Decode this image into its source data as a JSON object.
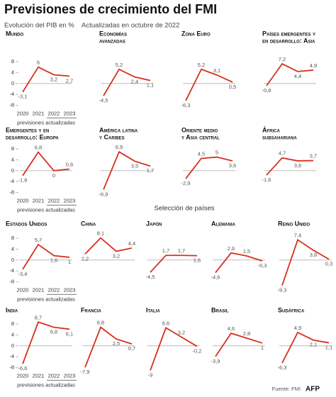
{
  "title": "Previsiones de crecimiento del FMI",
  "subtitle": "Evolución del PIB en %",
  "update_note": "Actualizadas en octubre de 2022",
  "section_label": "Selección de países",
  "source": "Fuente: FMI",
  "logo": "AFP",
  "chart_data": [
    {
      "type": "line",
      "title": [
        "Mundo"
      ],
      "categories": [
        "2020",
        "2021",
        "2022",
        "2023"
      ],
      "forecast_note": "previsiones actualizadas",
      "values": [
        -3.1,
        6,
        3.2,
        2.7
      ],
      "value_labels": [
        "-3,1",
        "6",
        "3,2",
        "2,7"
      ],
      "color": "#d7301f",
      "ylim": [
        -10,
        9
      ],
      "yticks": [
        -8,
        -4,
        0,
        4,
        8
      ]
    },
    {
      "type": "line",
      "title": [
        "Economías",
        "avanzadas"
      ],
      "values": [
        -4.5,
        5.2,
        2.4,
        1.1
      ],
      "value_labels": [
        "-4,5",
        "5,2",
        "2,4",
        "1,1"
      ],
      "color": "#d7301f",
      "ylim": [
        -10,
        9
      ]
    },
    {
      "type": "line",
      "title": [
        "Zona Euro"
      ],
      "values": [
        -6.3,
        5.2,
        3.1,
        0.5
      ],
      "value_labels": [
        "-6,3",
        "5,2",
        "3,1",
        "0,5"
      ],
      "color": "#d7301f",
      "ylim": [
        -10,
        9
      ]
    },
    {
      "type": "line",
      "title": [
        "Países emergentes y",
        "en desarrollo: Asia"
      ],
      "values": [
        -0.8,
        7.2,
        4.4,
        4.9
      ],
      "value_labels": [
        "-0,8",
        "7,2",
        "4,4",
        "4,9"
      ],
      "color": "#d7301f",
      "ylim": [
        -10,
        9
      ]
    },
    {
      "type": "line",
      "title": [
        "Emergentes y en",
        "desarrollo: Europa"
      ],
      "categories": [
        "2020",
        "2021",
        "2022",
        "2023"
      ],
      "forecast_note": "previsiones actualizadas",
      "values": [
        -1.8,
        6.8,
        0,
        0.6
      ],
      "value_labels": [
        "-1,8",
        "6,8",
        "0",
        "0,6"
      ],
      "color": "#d7301f",
      "ylim": [
        -10,
        9
      ],
      "yticks": [
        -8,
        -4,
        0,
        4,
        8
      ]
    },
    {
      "type": "line",
      "title": [
        "América latina",
        "y Caribes"
      ],
      "values": [
        -6.9,
        6.9,
        3.5,
        1.7
      ],
      "value_labels": [
        "-6,9",
        "6,9",
        "3,5",
        "1,7"
      ],
      "color": "#d7301f",
      "ylim": [
        -10,
        9
      ]
    },
    {
      "type": "line",
      "title": [
        "Oriente medio",
        "y Asia central"
      ],
      "values": [
        -2.9,
        4.5,
        5,
        3.6
      ],
      "value_labels": [
        "-2,9",
        "4,5",
        "5",
        "3,6"
      ],
      "color": "#d7301f",
      "ylim": [
        -10,
        9
      ]
    },
    {
      "type": "line",
      "title": [
        "África",
        "subsahariana"
      ],
      "values": [
        -1.6,
        4.7,
        3.6,
        3.7
      ],
      "value_labels": [
        "-1,6",
        "4,7",
        "3,6",
        "3,7"
      ],
      "color": "#d7301f",
      "ylim": [
        -10,
        9
      ]
    },
    {
      "type": "line",
      "title": [
        "Estados Unidos"
      ],
      "categories": [
        "2020",
        "2021",
        "2022",
        "2023"
      ],
      "forecast_note": "previsiones actualizadas",
      "values": [
        -3.4,
        5.7,
        1.6,
        1
      ],
      "value_labels": [
        "-3,4",
        "5,7",
        "1,6",
        "1"
      ],
      "color": "#d7301f",
      "ylim": [
        -10,
        9
      ],
      "yticks": [
        -8,
        -4,
        0,
        4,
        8
      ]
    },
    {
      "type": "line",
      "title": [
        "China"
      ],
      "values": [
        2.2,
        8.1,
        3.2,
        4.4
      ],
      "value_labels": [
        "2,2",
        "8,1",
        "3,2",
        "4,4"
      ],
      "color": "#d7301f",
      "ylim": [
        -10,
        9
      ]
    },
    {
      "type": "line",
      "title": [
        "Japón"
      ],
      "values": [
        -4.5,
        1.7,
        1.7,
        1.6
      ],
      "value_labels": [
        "-4,5",
        "1,7",
        "1,7",
        "1,6"
      ],
      "color": "#d7301f",
      "ylim": [
        -10,
        9
      ]
    },
    {
      "type": "line",
      "title": [
        "Alemania"
      ],
      "values": [
        -4.6,
        2.6,
        1.5,
        -0.3
      ],
      "value_labels": [
        "-4,6",
        "2,6",
        "1,5",
        "-0,3"
      ],
      "color": "#d7301f",
      "ylim": [
        -10,
        9
      ]
    },
    {
      "type": "line",
      "title": [
        "Reino Unido"
      ],
      "values": [
        -9.3,
        7.4,
        3.6,
        0.3
      ],
      "value_labels": [
        "-9,3",
        "7,4",
        "3,6",
        "0,3"
      ],
      "color": "#d7301f",
      "ylim": [
        -10,
        9
      ]
    },
    {
      "type": "line",
      "title": [
        "India"
      ],
      "categories": [
        "2020",
        "2021",
        "2022",
        "2023"
      ],
      "forecast_note": "previsiones actualizadas",
      "values": [
        -6.6,
        8.7,
        6.8,
        6.1
      ],
      "value_labels": [
        "-6,6",
        "8,7",
        "6,8",
        "6,1"
      ],
      "color": "#d7301f",
      "ylim": [
        -10,
        9
      ],
      "yticks": [
        -8,
        -4,
        0,
        4,
        8
      ]
    },
    {
      "type": "line",
      "title": [
        "Francia"
      ],
      "values": [
        -7.9,
        6.8,
        2.5,
        0.7
      ],
      "value_labels": [
        "-7,9",
        "6,8",
        "2,5",
        "0,7"
      ],
      "color": "#d7301f",
      "ylim": [
        -10,
        9
      ]
    },
    {
      "type": "line",
      "title": [
        "Italia"
      ],
      "values": [
        -9,
        6.6,
        3.2,
        -0.2
      ],
      "value_labels": [
        "-9",
        "6,6",
        "3,2",
        "-0,2"
      ],
      "color": "#d7301f",
      "ylim": [
        -10,
        9
      ]
    },
    {
      "type": "line",
      "title": [
        "Brasil"
      ],
      "values": [
        -3.9,
        4.6,
        2.8,
        1
      ],
      "value_labels": [
        "-3,9",
        "4,6",
        "2,8",
        "1"
      ],
      "color": "#d7301f",
      "ylim": [
        -10,
        9
      ]
    },
    {
      "type": "line",
      "title": [
        "Sudáfrica"
      ],
      "values": [
        -6.3,
        4.9,
        2.1,
        1.1
      ],
      "value_labels": [
        "-6,3",
        "4,9",
        "2,1",
        "1,1"
      ],
      "color": "#d7301f",
      "ylim": [
        -10,
        9
      ]
    }
  ]
}
